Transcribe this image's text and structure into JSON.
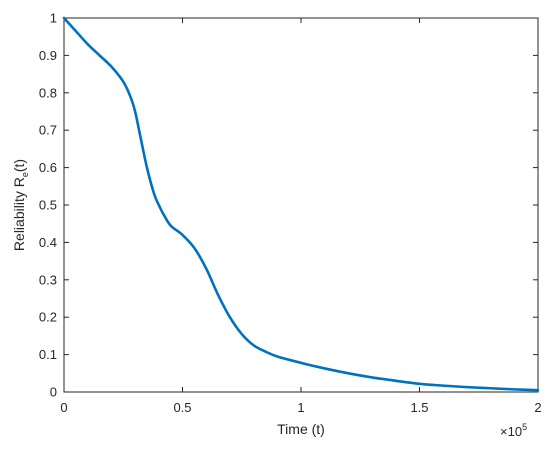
{
  "chart_data": {
    "type": "line",
    "xlabel": "Time (t)",
    "ylabel_main": "Reliability R",
    "ylabel_sub": "e",
    "ylabel_tail": "(t)",
    "x_multiplier": {
      "base": "×10",
      "exponent": "5"
    },
    "xlim": [
      0,
      200000
    ],
    "ylim": [
      0,
      1
    ],
    "xticks": [
      0,
      50000,
      100000,
      150000,
      200000
    ],
    "xtick_labels": [
      "0",
      "0.5",
      "1",
      "1.5",
      "2"
    ],
    "yticks": [
      0,
      0.1,
      0.2,
      0.3,
      0.4,
      0.5,
      0.6,
      0.7,
      0.8,
      0.9,
      1
    ],
    "ytick_labels": [
      "0",
      "0.1",
      "0.2",
      "0.3",
      "0.4",
      "0.5",
      "0.6",
      "0.7",
      "0.8",
      "0.9",
      "1"
    ],
    "grid": false,
    "series": [
      {
        "color": "#0072BD",
        "x": [
          0,
          5000,
          10000,
          15000,
          20000,
          25000,
          28000,
          30000,
          32000,
          35000,
          38000,
          40000,
          42000,
          45000,
          50000,
          55000,
          60000,
          65000,
          70000,
          75000,
          80000,
          85000,
          90000,
          100000,
          110000,
          120000,
          130000,
          140000,
          150000,
          160000,
          170000,
          180000,
          190000,
          200000
        ],
        "y": [
          1.0,
          0.965,
          0.93,
          0.9,
          0.87,
          0.83,
          0.79,
          0.75,
          0.69,
          0.6,
          0.53,
          0.5,
          0.475,
          0.445,
          0.42,
          0.385,
          0.33,
          0.26,
          0.2,
          0.155,
          0.125,
          0.108,
          0.095,
          0.078,
          0.063,
          0.05,
          0.039,
          0.03,
          0.022,
          0.017,
          0.013,
          0.01,
          0.007,
          0.005
        ]
      }
    ]
  }
}
